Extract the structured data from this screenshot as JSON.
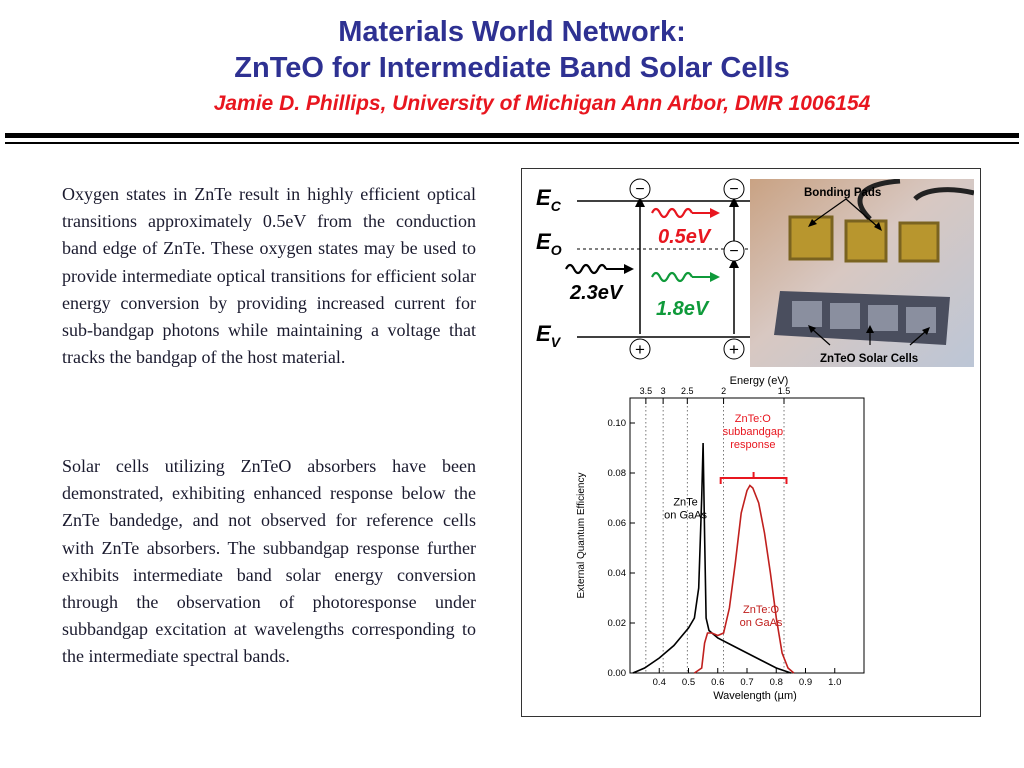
{
  "header": {
    "title_line1": "Materials World Network:",
    "title_line2": "ZnTeO for Intermediate Band Solar Cells",
    "author_line": "Jamie D. Phillips, University of Michigan Ann Arbor, DMR 1006154"
  },
  "body": {
    "paragraph1": "Oxygen states in ZnTe result in highly efficient optical transitions approximately 0.5eV from the conduction band edge of ZnTe. These oxygen states may be used to provide intermediate optical transitions for efficient solar energy conversion by providing increased current for sub-bandgap photons while maintaining a voltage that tracks the bandgap of the host material.",
    "paragraph2": "Solar cells utilizing ZnTeO absorbers have been demonstrated, exhibiting enhanced response below the ZnTe bandedge, and not observed for reference cells with ZnTe absorbers. The subbandgap response further exhibits intermediate band solar energy conversion through the observation of photoresponse under subbandgap excitation at wavelengths corresponding to the intermediate spectral bands."
  },
  "band_diagram": {
    "ec_main": "E",
    "ec_sub": "C",
    "eo_main": "E",
    "eo_sub": "O",
    "ev_main": "E",
    "ev_sub": "V",
    "gap_high": "2.3eV",
    "gap_ec_eo": "0.5eV",
    "gap_eo_ev": "1.8eV",
    "electron_symbol": "−",
    "hole_symbol": "+",
    "colors": {
      "red": "#e8161f",
      "green": "#0f9a3a",
      "black": "#000000"
    }
  },
  "photo": {
    "label_pads": "Bonding Pads",
    "label_cells": "ZnTeO Solar Cells"
  },
  "chart_data": {
    "type": "line",
    "xlabel": "Wavelength (µm)",
    "ylabel": "External Quantum Efficiency",
    "top_axis_label": "Energy (eV)",
    "xlim": [
      0.3,
      1.1
    ],
    "ylim": [
      0,
      0.11
    ],
    "x_ticks": [
      0.4,
      0.5,
      0.6,
      0.7,
      0.8,
      0.9,
      1.0
    ],
    "x_tick_labels": [
      "0.4",
      "0.5",
      "0.6",
      "0.7",
      "0.8",
      "0.9",
      "1.0"
    ],
    "y_ticks": [
      0.0,
      0.02,
      0.04,
      0.06,
      0.08,
      0.1
    ],
    "y_tick_labels": [
      "0.00",
      "0.02",
      "0.04",
      "0.06",
      "0.08",
      "0.10"
    ],
    "top_ticks_ev": [
      3.5,
      3,
      2.5,
      2,
      1.5
    ],
    "top_tick_labels": [
      "3.5",
      "3",
      "2.5",
      "2",
      "1.5"
    ],
    "grid": "dotted vertical lines at energy ticks",
    "series": [
      {
        "name": "ZnTe on GaAs",
        "label": [
          "ZnTe",
          "on GaAs"
        ],
        "color": "#000000",
        "x": [
          0.31,
          0.35,
          0.4,
          0.45,
          0.5,
          0.52,
          0.535,
          0.545,
          0.55,
          0.555,
          0.56,
          0.57,
          0.6,
          0.65,
          0.7,
          0.75,
          0.8,
          0.85
        ],
        "y": [
          0.0,
          0.002,
          0.006,
          0.011,
          0.018,
          0.022,
          0.034,
          0.07,
          0.092,
          0.055,
          0.022,
          0.017,
          0.014,
          0.011,
          0.008,
          0.005,
          0.002,
          0.0
        ]
      },
      {
        "name": "ZnTe:O on GaAs",
        "label": [
          "ZnTe:O",
          "on GaAs"
        ],
        "color": "#c0201e",
        "x": [
          0.52,
          0.545,
          0.555,
          0.565,
          0.58,
          0.6,
          0.62,
          0.64,
          0.66,
          0.68,
          0.7,
          0.71,
          0.72,
          0.74,
          0.76,
          0.78,
          0.8,
          0.82,
          0.84,
          0.86
        ],
        "y": [
          0.0,
          0.002,
          0.012,
          0.016,
          0.016,
          0.015,
          0.016,
          0.026,
          0.044,
          0.064,
          0.073,
          0.075,
          0.074,
          0.068,
          0.056,
          0.04,
          0.022,
          0.008,
          0.002,
          0.0
        ]
      }
    ],
    "annotations": [
      {
        "text": [
          "ZnTe:O",
          "subbandgap",
          "response"
        ],
        "color": "#e8161f"
      }
    ]
  }
}
